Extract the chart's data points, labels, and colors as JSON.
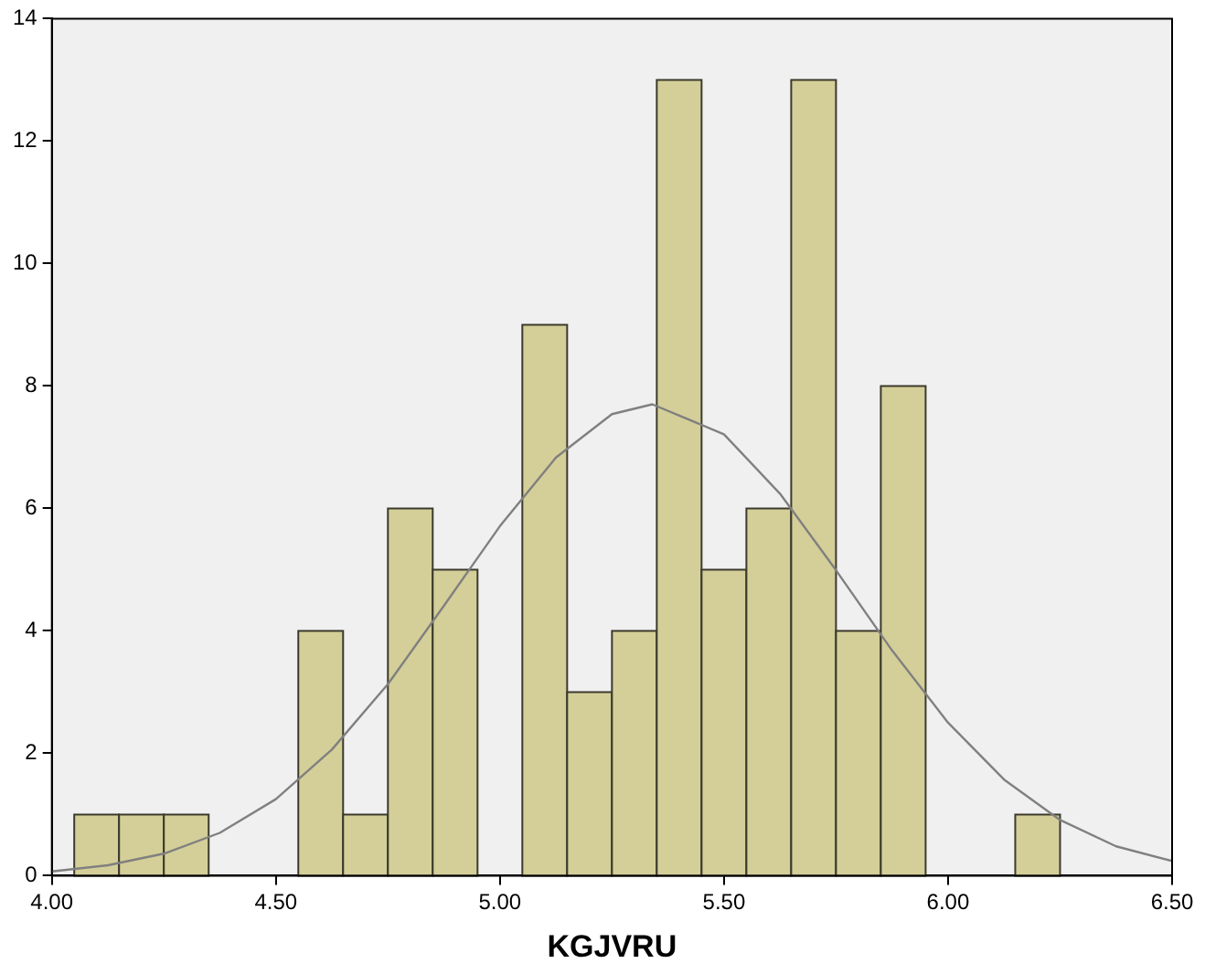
{
  "chart_data": {
    "type": "histogram",
    "xlabel": "KGJVRU",
    "series": [
      {
        "color": "#d4cf98",
        "bins": [
          4.05,
          4.15,
          4.25,
          4.35,
          4.45,
          4.55,
          4.65,
          4.75,
          4.85,
          4.95,
          5.05,
          5.15,
          5.25,
          5.35,
          5.45,
          5.55,
          5.65,
          5.75,
          5.85,
          5.95,
          6.05,
          6.15,
          6.25
        ],
        "values": [
          1,
          1,
          1,
          0,
          0,
          4,
          1,
          6,
          5,
          0,
          9,
          3,
          4,
          13,
          5,
          6,
          13,
          4,
          8,
          0,
          0,
          1
        ]
      },
      {
        "type": "line",
        "color": "#808080",
        "x": [
          4.0,
          4.125,
          4.25,
          4.375,
          4.5,
          4.625,
          4.75,
          4.875,
          5.0,
          5.125,
          5.25,
          5.34,
          5.5,
          5.625,
          5.75,
          5.875,
          6.0,
          6.125,
          6.25,
          6.375,
          6.5
        ],
        "values": [
          0.07,
          0.17,
          0.36,
          0.7,
          1.25,
          2.06,
          3.13,
          4.41,
          5.71,
          6.83,
          7.54,
          7.7,
          7.21,
          6.24,
          4.99,
          3.68,
          2.5,
          1.57,
          0.91,
          0.48,
          0.24
        ]
      }
    ],
    "xlim": [
      4,
      6.5
    ],
    "xticks": [
      {
        "value": 4,
        "label": "4.00"
      },
      {
        "value": 4.5,
        "label": "4.50"
      },
      {
        "value": 5,
        "label": "5.00"
      },
      {
        "value": 5.5,
        "label": "5.50"
      },
      {
        "value": 6,
        "label": "6.00"
      },
      {
        "value": 6.5,
        "label": "6.50"
      }
    ],
    "ylim": [
      0,
      14
    ],
    "yticks": [
      0,
      2,
      4,
      6,
      8,
      10,
      12,
      14
    ],
    "grid": false,
    "legend": false,
    "marker": "none",
    "line_style": "solid"
  }
}
